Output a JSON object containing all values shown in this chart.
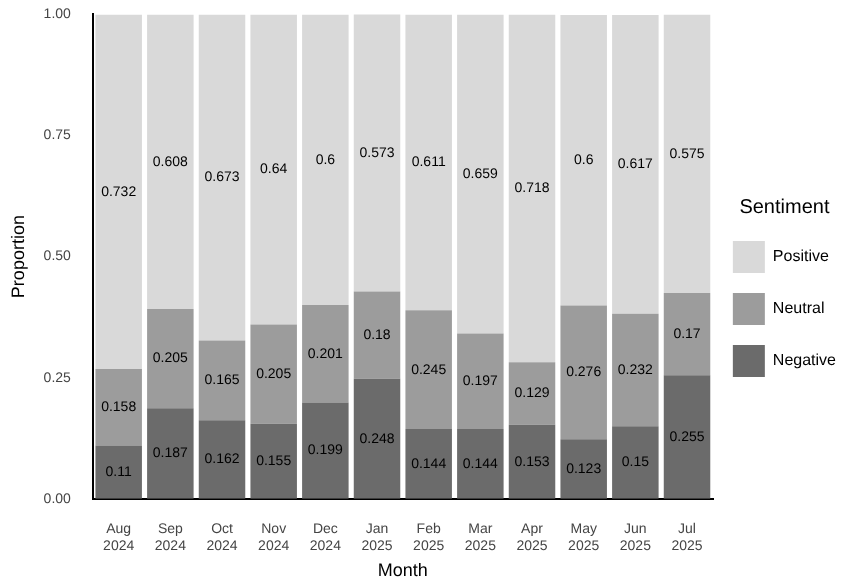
{
  "chart_data": {
    "type": "bar",
    "stacked": true,
    "xlabel": "Month",
    "ylabel": "Proportion",
    "legend_title": "Sentiment",
    "legend": "right",
    "data_labels": true,
    "categories": [
      "Aug 2024",
      "Sep 2024",
      "Oct 2024",
      "Nov 2024",
      "Dec 2024",
      "Jan 2025",
      "Feb 2025",
      "Mar 2025",
      "Apr 2025",
      "May 2025",
      "Jun 2025",
      "Jul 2025"
    ],
    "series": [
      {
        "name": "Negative",
        "color": "#6b6b6b",
        "values": [
          0.11,
          0.187,
          0.162,
          0.155,
          0.199,
          0.248,
          0.144,
          0.144,
          0.153,
          0.123,
          0.15,
          0.255
        ]
      },
      {
        "name": "Neutral",
        "color": "#9c9c9c",
        "values": [
          0.158,
          0.205,
          0.165,
          0.205,
          0.201,
          0.18,
          0.245,
          0.197,
          0.129,
          0.276,
          0.232,
          0.17
        ]
      },
      {
        "name": "Positive",
        "color": "#d9d9d9",
        "values": [
          0.732,
          0.608,
          0.673,
          0.64,
          0.6,
          0.573,
          0.611,
          0.659,
          0.718,
          0.6,
          0.617,
          0.575
        ]
      }
    ],
    "ylim": [
      0,
      1
    ],
    "yticks": [
      {
        "value": 0,
        "label": "0.00"
      },
      {
        "value": 0.25,
        "label": "0.25"
      },
      {
        "value": 0.5,
        "label": "0.50"
      },
      {
        "value": 0.75,
        "label": "0.75"
      },
      {
        "value": 1,
        "label": "1.00"
      }
    ]
  }
}
